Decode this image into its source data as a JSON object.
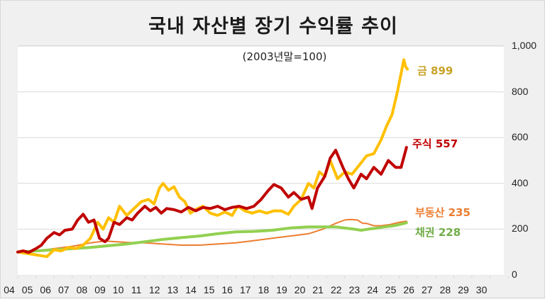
{
  "chart_data": {
    "type": "line",
    "title": "국내 자산별 장기 수익률 추이",
    "subtitle": "(2003년말=100)",
    "xlabel": "",
    "ylabel": "",
    "ylim": [
      0,
      1000
    ],
    "xlim": [
      2004,
      2031
    ],
    "grid": true,
    "legend_position": "inline-right-end",
    "y_ticks": [
      "0",
      "200",
      "400",
      "600",
      "800",
      "1,000"
    ],
    "y_tick_values": [
      0,
      200,
      400,
      600,
      800,
      1000
    ],
    "x_ticks": [
      "04",
      "05",
      "06",
      "07",
      "08",
      "09",
      "10",
      "11",
      "12",
      "13",
      "14",
      "15",
      "16",
      "17",
      "18",
      "19",
      "20",
      "21",
      "22",
      "23",
      "24",
      "25",
      "26",
      "27",
      "28",
      "29",
      "30"
    ],
    "series": [
      {
        "name": "주식",
        "end_label": "주식 557",
        "end_value": 557,
        "color": "#c00000",
        "width": 4,
        "x": [
          2004.0,
          2004.3,
          2004.6,
          2005.0,
          2005.3,
          2005.6,
          2006.0,
          2006.3,
          2006.6,
          2007.0,
          2007.3,
          2007.6,
          2007.9,
          2008.2,
          2008.5,
          2008.8,
          2009.0,
          2009.3,
          2009.6,
          2010.0,
          2010.3,
          2010.6,
          2011.0,
          2011.3,
          2011.6,
          2011.9,
          2012.2,
          2012.6,
          2013.0,
          2013.4,
          2013.8,
          2014.2,
          2014.6,
          2015.0,
          2015.4,
          2015.8,
          2016.2,
          2016.6,
          2017.0,
          2017.4,
          2017.8,
          2018.1,
          2018.5,
          2018.9,
          2019.2,
          2019.6,
          2020.0,
          2020.2,
          2020.5,
          2020.9,
          2021.2,
          2021.5,
          2021.9,
          2022.2,
          2022.5,
          2022.9,
          2023.2,
          2023.6,
          2024.0,
          2024.4,
          2024.8,
          2025.1,
          2025.4
        ],
        "values": [
          100,
          105,
          98,
          115,
          130,
          160,
          185,
          175,
          195,
          200,
          240,
          265,
          230,
          240,
          160,
          145,
          160,
          230,
          220,
          250,
          240,
          270,
          300,
          280,
          295,
          270,
          290,
          285,
          275,
          295,
          280,
          295,
          290,
          300,
          285,
          295,
          300,
          290,
          300,
          330,
          370,
          395,
          380,
          340,
          360,
          330,
          340,
          290,
          380,
          430,
          510,
          545,
          470,
          420,
          380,
          440,
          420,
          470,
          440,
          500,
          470,
          470,
          557
        ]
      },
      {
        "name": "금",
        "end_label": "금 899",
        "end_value": 899,
        "color": "#ffc000",
        "width": 4,
        "x": [
          2004.0,
          2004.4,
          2004.8,
          2005.2,
          2005.6,
          2006.0,
          2006.4,
          2006.8,
          2007.2,
          2007.6,
          2008.0,
          2008.4,
          2008.7,
          2009.0,
          2009.3,
          2009.6,
          2010.0,
          2010.4,
          2010.8,
          2011.2,
          2011.5,
          2011.8,
          2012.0,
          2012.3,
          2012.6,
          2012.9,
          2013.2,
          2013.5,
          2013.9,
          2014.2,
          2014.6,
          2015.0,
          2015.4,
          2015.8,
          2016.1,
          2016.5,
          2016.9,
          2017.3,
          2017.7,
          2018.1,
          2018.5,
          2018.9,
          2019.2,
          2019.6,
          2020.0,
          2020.3,
          2020.6,
          2020.9,
          2021.2,
          2021.6,
          2022.0,
          2022.4,
          2022.8,
          2023.2,
          2023.6,
          2024.0,
          2024.3,
          2024.6,
          2024.9,
          2025.1,
          2025.25,
          2025.35,
          2025.45
        ],
        "values": [
          100,
          95,
          90,
          85,
          80,
          110,
          105,
          120,
          115,
          130,
          160,
          230,
          200,
          250,
          230,
          300,
          260,
          290,
          320,
          330,
          310,
          380,
          400,
          370,
          385,
          340,
          320,
          270,
          290,
          300,
          270,
          260,
          275,
          260,
          300,
          280,
          270,
          280,
          270,
          280,
          280,
          265,
          300,
          330,
          400,
          380,
          450,
          430,
          500,
          420,
          450,
          440,
          480,
          520,
          530,
          590,
          650,
          700,
          800,
          880,
          940,
          910,
          899
        ]
      },
      {
        "name": "부동산",
        "end_label": "부동산 235",
        "end_value": 235,
        "color": "#ed7d31",
        "width": 2,
        "x": [
          2004.0,
          2005.0,
          2006.0,
          2007.0,
          2008.0,
          2008.8,
          2009.5,
          2010.0,
          2011.0,
          2012.0,
          2013.0,
          2014.0,
          2015.0,
          2016.0,
          2017.0,
          2018.0,
          2019.0,
          2020.0,
          2020.8,
          2021.5,
          2022.0,
          2022.3,
          2022.7,
          2023.0,
          2023.2,
          2023.6,
          2024.0,
          2024.5,
          2025.0,
          2025.4
        ],
        "values": [
          100,
          105,
          115,
          125,
          140,
          148,
          145,
          142,
          140,
          135,
          130,
          130,
          135,
          140,
          150,
          160,
          170,
          180,
          200,
          225,
          240,
          242,
          240,
          225,
          225,
          215,
          215,
          220,
          230,
          235
        ]
      },
      {
        "name": "채권",
        "end_label": "채권 228",
        "end_value": 228,
        "color": "#92d050",
        "width": 4,
        "x": [
          2004.0,
          2005.0,
          2006.0,
          2007.0,
          2008.0,
          2009.0,
          2010.0,
          2011.0,
          2012.0,
          2013.0,
          2014.0,
          2015.0,
          2016.0,
          2017.0,
          2018.0,
          2019.0,
          2020.0,
          2020.8,
          2021.5,
          2022.0,
          2022.5,
          2022.9,
          2023.3,
          2023.8,
          2024.2,
          2024.7,
          2025.0,
          2025.4
        ],
        "values": [
          100,
          105,
          110,
          115,
          120,
          128,
          135,
          145,
          155,
          163,
          170,
          180,
          188,
          190,
          195,
          205,
          210,
          210,
          210,
          205,
          200,
          195,
          200,
          205,
          210,
          215,
          220,
          228
        ]
      }
    ]
  },
  "labels": {
    "title": "국내 자산별 장기 수익률 추이",
    "subtitle": "(2003년말=100)",
    "gold": "금 899",
    "stock": "주식 557",
    "realestate": "부동산 235",
    "bond": "채권 228"
  }
}
